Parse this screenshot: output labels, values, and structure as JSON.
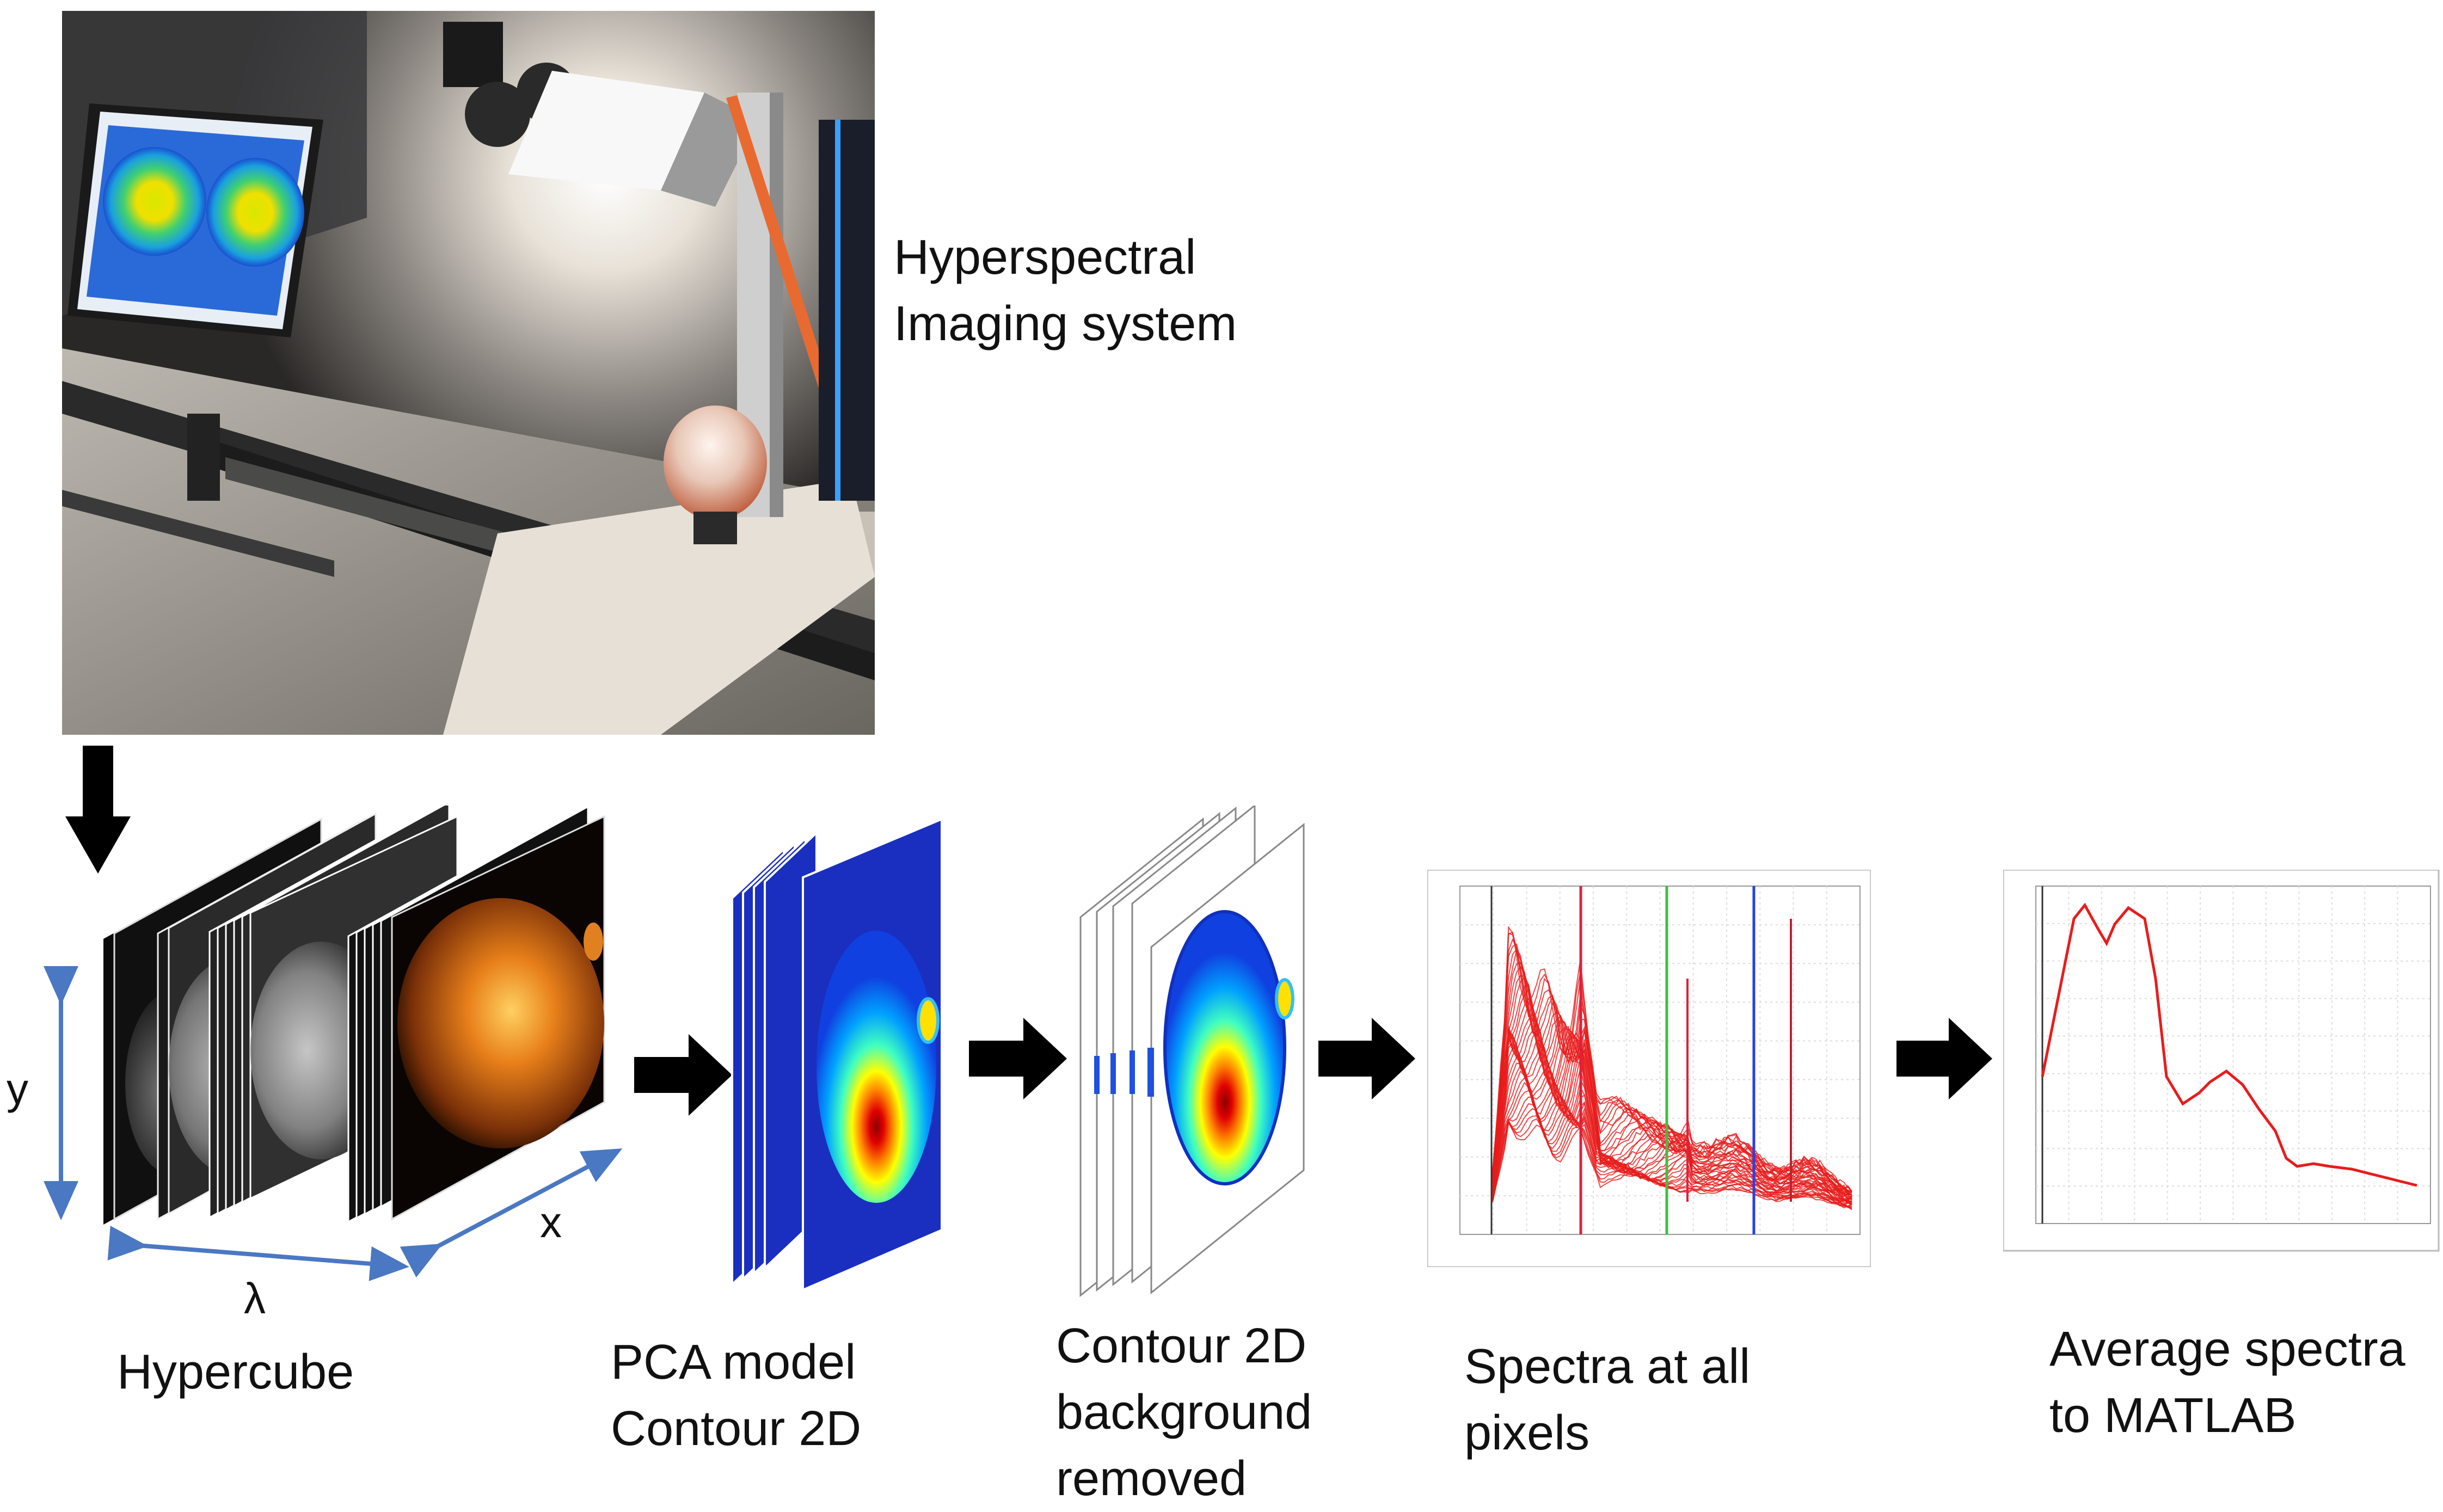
{
  "photo": {
    "label_lines": [
      "Hyperspectral",
      "Imaging system"
    ]
  },
  "stages": [
    {
      "key": "hypercube",
      "lines": [
        "Hypercube"
      ]
    },
    {
      "key": "pca",
      "lines": [
        "PCA model",
        "Contour 2D"
      ]
    },
    {
      "key": "contour",
      "lines": [
        "Contour 2D",
        "background",
        "removed"
      ]
    },
    {
      "key": "spectra",
      "lines": [
        "Spectra at all",
        "pixels"
      ]
    },
    {
      "key": "average",
      "lines": [
        "Average spectra",
        "to MATLAB"
      ]
    }
  ],
  "hypercube_axes": {
    "y": "y",
    "x": "x",
    "lambda": "λ"
  },
  "colors": {
    "arrow": "#000000",
    "axis_arrow": "#4a78c2",
    "spectra_line": "#e81c1c",
    "marker_red": "#e0203a",
    "marker_green": "#3fbf3f",
    "marker_blue": "#2a3fe0",
    "pca_frame": "#1a2fc0"
  }
}
